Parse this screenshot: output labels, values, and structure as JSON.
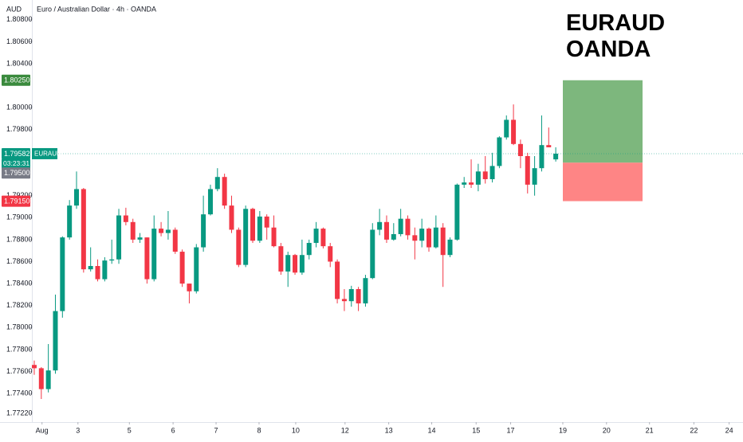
{
  "chart_data": {
    "type": "candlestick",
    "title": "Euro / Australian Dollar · 4h · OANDA",
    "currency": "AUD",
    "annotation": [
      "EURAUD",
      "OANDA"
    ],
    "symbol": "EURAUD",
    "countdown": "03:23:31",
    "up_color": "#089981",
    "down_color": "#f23645",
    "grid": false,
    "open": [
      1.7766,
      1.7763,
      1.7744,
      1.7761,
      1.7815,
      1.7882,
      1.7911,
      1.7926,
      1.7853,
      1.7856,
      1.7844,
      1.7861,
      1.7862,
      1.7902,
      1.7896,
      1.788,
      1.7882,
      1.7844,
      1.789,
      1.7886,
      1.7889,
      1.7869,
      1.784,
      1.7833,
      1.7873,
      1.7903,
      1.7926,
      1.7937,
      1.7911,
      1.7889,
      1.7857,
      1.7908,
      1.7879,
      1.7901,
      1.7891,
      1.7874,
      1.7851,
      1.7866,
      1.785,
      1.7866,
      1.7877,
      1.789,
      1.7874,
      1.786,
      1.7826,
      1.7824,
      1.7835,
      1.7822,
      1.7845,
      1.7889,
      1.7896,
      1.788,
      1.7885,
      1.7899,
      1.7884,
      1.7879,
      1.789,
      1.7873,
      1.7891,
      1.7866,
      1.788,
      1.793,
      1.7932,
      1.793,
      1.7942,
      1.7935,
      1.7947,
      1.7973,
      1.7989,
      1.7967,
      1.7956,
      1.793,
      1.7945,
      1.7966,
      1.7953
    ],
    "high": [
      1.777,
      1.7764,
      1.7785,
      1.783,
      1.7883,
      1.7916,
      1.7942,
      1.7927,
      1.7873,
      1.7862,
      1.7864,
      1.788,
      1.7908,
      1.7909,
      1.7899,
      1.7886,
      1.7882,
      1.7902,
      1.7896,
      1.7906,
      1.7891,
      1.7871,
      1.784,
      1.7876,
      1.792,
      1.793,
      1.7945,
      1.794,
      1.792,
      1.7891,
      1.7911,
      1.7909,
      1.7906,
      1.7903,
      1.7902,
      1.7877,
      1.7869,
      1.7867,
      1.788,
      1.788,
      1.7896,
      1.7891,
      1.7877,
      1.7862,
      1.7835,
      1.7838,
      1.7837,
      1.7848,
      1.7895,
      1.7908,
      1.7902,
      1.7895,
      1.7908,
      1.7902,
      1.7891,
      1.7899,
      1.7891,
      1.7902,
      1.7895,
      1.7882,
      1.7931,
      1.7937,
      1.7953,
      1.7949,
      1.7956,
      1.7959,
      1.7974,
      1.7993,
      1.8003,
      1.7971,
      1.7959,
      1.7956,
      1.7993,
      1.7982,
      1.7964
    ],
    "low": [
      1.7757,
      1.7735,
      1.7741,
      1.7758,
      1.7809,
      1.788,
      1.7908,
      1.785,
      1.7851,
      1.7842,
      1.7842,
      1.7858,
      1.7858,
      1.7893,
      1.7877,
      1.7877,
      1.784,
      1.7842,
      1.7883,
      1.788,
      1.7867,
      1.7837,
      1.7822,
      1.7831,
      1.7869,
      1.7902,
      1.7924,
      1.7908,
      1.7886,
      1.7855,
      1.7855,
      1.7877,
      1.7877,
      1.788,
      1.7873,
      1.7848,
      1.7837,
      1.7848,
      1.7848,
      1.7862,
      1.7873,
      1.7872,
      1.7855,
      1.7822,
      1.7815,
      1.7819,
      1.7815,
      1.7819,
      1.7844,
      1.7884,
      1.7877,
      1.7879,
      1.7883,
      1.788,
      1.7862,
      1.7873,
      1.7869,
      1.7872,
      1.7837,
      1.7864,
      1.7879,
      1.7927,
      1.7927,
      1.7924,
      1.7931,
      1.7932,
      1.7945,
      1.7971,
      1.7966,
      1.7945,
      1.7922,
      1.792,
      1.7942,
      1.7964,
      1.7951
    ],
    "close": [
      1.7763,
      1.7744,
      1.7761,
      1.7815,
      1.7882,
      1.7911,
      1.7926,
      1.7853,
      1.7856,
      1.7844,
      1.7861,
      1.7862,
      1.7902,
      1.7896,
      1.788,
      1.7882,
      1.7844,
      1.789,
      1.7886,
      1.7889,
      1.7869,
      1.784,
      1.7833,
      1.7873,
      1.7903,
      1.7926,
      1.7937,
      1.7911,
      1.7889,
      1.7857,
      1.7908,
      1.7879,
      1.7901,
      1.7891,
      1.7874,
      1.7851,
      1.7866,
      1.785,
      1.7866,
      1.7877,
      1.789,
      1.7874,
      1.786,
      1.7826,
      1.7824,
      1.7835,
      1.7822,
      1.7845,
      1.7889,
      1.7896,
      1.788,
      1.7885,
      1.7899,
      1.7884,
      1.7879,
      1.789,
      1.7873,
      1.7891,
      1.7866,
      1.788,
      1.793,
      1.7932,
      1.793,
      1.7942,
      1.7935,
      1.7947,
      1.7973,
      1.7989,
      1.7967,
      1.7956,
      1.793,
      1.7945,
      1.7966,
      1.7964,
      1.79582
    ],
    "last_price": {
      "value": 1.79582,
      "label": "1.79582"
    },
    "position": {
      "target": {
        "value": 1.8025,
        "label": "1.80250"
      },
      "entry": {
        "value": 1.795,
        "label": "1.79500"
      },
      "stop": {
        "value": 1.7915,
        "label": "1.79150"
      }
    },
    "xlim": [
      -4.86,
      100.57
    ],
    "xticks": [
      {
        "value": 1.1,
        "label": "Aug"
      },
      {
        "value": 6.2,
        "label": "3"
      },
      {
        "value": 13.5,
        "label": "5"
      },
      {
        "value": 19.7,
        "label": "6"
      },
      {
        "value": 25.8,
        "label": "7"
      },
      {
        "value": 31.9,
        "label": "8"
      },
      {
        "value": 37.1,
        "label": "10"
      },
      {
        "value": 44.1,
        "label": "12"
      },
      {
        "value": 50.3,
        "label": "13"
      },
      {
        "value": 56.4,
        "label": "14"
      },
      {
        "value": 62.7,
        "label": "15"
      },
      {
        "value": 67.6,
        "label": "17"
      },
      {
        "value": 75.0,
        "label": "19"
      },
      {
        "value": 81.2,
        "label": "20"
      },
      {
        "value": 87.3,
        "label": "21"
      },
      {
        "value": 93.6,
        "label": "22"
      },
      {
        "value": 98.6,
        "label": "24"
      }
    ],
    "ylim": [
      1.7714,
      1.8098
    ],
    "yticks": [
      {
        "value": 1.808,
        "label": "1.80800"
      },
      {
        "value": 1.806,
        "label": "1.80600"
      },
      {
        "value": 1.804,
        "label": "1.80400"
      },
      {
        "value": 1.8,
        "label": "1.80000"
      },
      {
        "value": 1.798,
        "label": "1.79800"
      },
      {
        "value": 1.792,
        "label": "1.79200"
      },
      {
        "value": 1.79,
        "label": "1.79000"
      },
      {
        "value": 1.788,
        "label": "1.78800"
      },
      {
        "value": 1.786,
        "label": "1.78600"
      },
      {
        "value": 1.784,
        "label": "1.78400"
      },
      {
        "value": 1.782,
        "label": "1.78200"
      },
      {
        "value": 1.78,
        "label": "1.78000"
      },
      {
        "value": 1.778,
        "label": "1.77800"
      },
      {
        "value": 1.776,
        "label": "1.77600"
      },
      {
        "value": 1.774,
        "label": "1.77400"
      },
      {
        "value": 1.7722,
        "label": "1.77220"
      }
    ]
  }
}
